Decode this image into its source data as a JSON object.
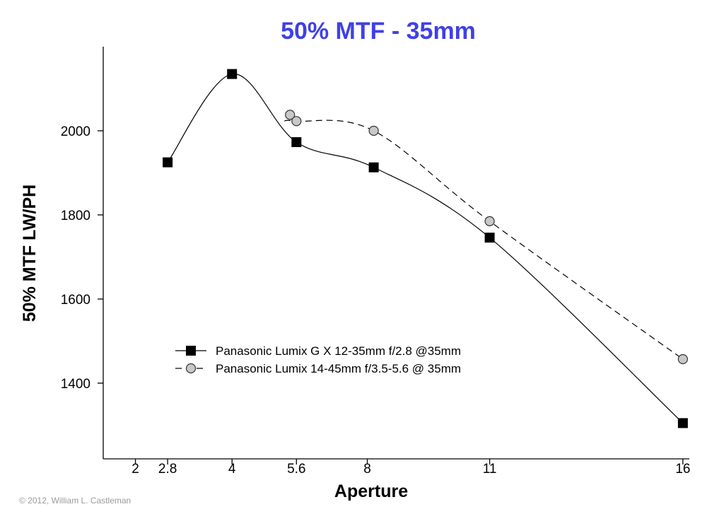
{
  "chart_data": {
    "type": "line",
    "title": "50% MTF - 35mm",
    "xlabel": "Aperture",
    "ylabel": "50% MTF LW/PH",
    "title_color": "#4040e6",
    "x_ticks": [
      {
        "label": "2",
        "value": 1.4
      },
      {
        "label": "2.8",
        "value": 1.9
      },
      {
        "label": "4",
        "value": 2.9
      },
      {
        "label": "5.6",
        "value": 3.9
      },
      {
        "label": "8",
        "value": 5.0
      },
      {
        "label": "11",
        "value": 6.9
      },
      {
        "label": "16",
        "value": 9.9
      }
    ],
    "xlim": [
      0.9,
      10.0
    ],
    "y_ticks": [
      1400,
      1600,
      1800,
      2000
    ],
    "ylim": [
      1220,
      2200
    ],
    "legend_position": "lower-left",
    "grid": false,
    "series": [
      {
        "name": "Panasonic Lumix G X 12-35mm f/2.8 @35mm",
        "marker": "square",
        "line_style": "solid",
        "color": "#000000",
        "points": [
          {
            "x": 1.9,
            "y": 1925
          },
          {
            "x": 2.9,
            "y": 2135
          },
          {
            "x": 3.9,
            "y": 1973
          },
          {
            "x": 5.1,
            "y": 1913
          },
          {
            "x": 6.9,
            "y": 1746
          },
          {
            "x": 9.9,
            "y": 1305
          }
        ]
      },
      {
        "name": "Panasonic Lumix 14-45mm f/3.5-5.6 @ 35mm",
        "marker": "circle",
        "line_style": "dashed",
        "color": "#000000",
        "marker_fill": "#c8c8c8",
        "points": [
          {
            "x": 3.8,
            "y": 2038
          },
          {
            "x": 3.9,
            "y": 2023
          },
          {
            "x": 5.1,
            "y": 2000
          },
          {
            "x": 6.9,
            "y": 1785
          },
          {
            "x": 9.9,
            "y": 1457
          }
        ]
      }
    ]
  },
  "copyright": "© 2012, William L. Castleman"
}
